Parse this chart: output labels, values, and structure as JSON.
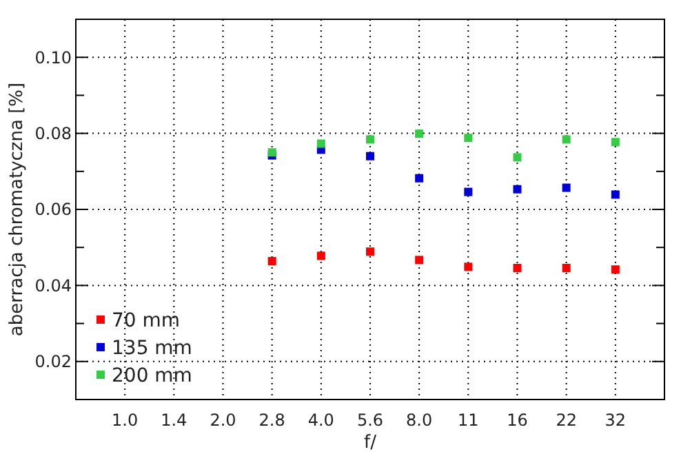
{
  "chart_data": {
    "type": "scatter",
    "xlabel": "f/",
    "ylabel": "aberracja chromatyczna [%]",
    "categories": [
      "1.0",
      "1.4",
      "2.0",
      "2.8",
      "4.0",
      "5.6",
      "8.0",
      "11",
      "16",
      "22",
      "32"
    ],
    "series": [
      {
        "name": "70 mm",
        "color": "#ff0000",
        "values": [
          null,
          null,
          null,
          0.0464,
          0.0478,
          0.0489,
          0.0467,
          0.0449,
          0.0446,
          0.0446,
          0.0442
        ]
      },
      {
        "name": "135 mm",
        "color": "#0000dd",
        "values": [
          null,
          null,
          null,
          0.0742,
          0.0757,
          0.074,
          0.0682,
          0.0646,
          0.0653,
          0.0657,
          0.0639
        ]
      },
      {
        "name": "200 mm",
        "color": "#33cc44",
        "values": [
          null,
          null,
          null,
          0.075,
          0.0773,
          0.0784,
          0.0799,
          0.0788,
          0.0737,
          0.0784,
          0.0777
        ]
      }
    ],
    "ylim": [
      0.01,
      0.11
    ],
    "yticks": [
      {
        "value": 0.02,
        "label": "0.02"
      },
      {
        "value": 0.03,
        "label": null
      },
      {
        "value": 0.04,
        "label": "0.04"
      },
      {
        "value": 0.05,
        "label": null
      },
      {
        "value": 0.06,
        "label": "0.06"
      },
      {
        "value": 0.07,
        "label": null
      },
      {
        "value": 0.08,
        "label": "0.08"
      },
      {
        "value": 0.09,
        "label": null
      },
      {
        "value": 0.1,
        "label": "0.10"
      }
    ],
    "grid": true,
    "legend": "bottom left",
    "marker": "square"
  }
}
